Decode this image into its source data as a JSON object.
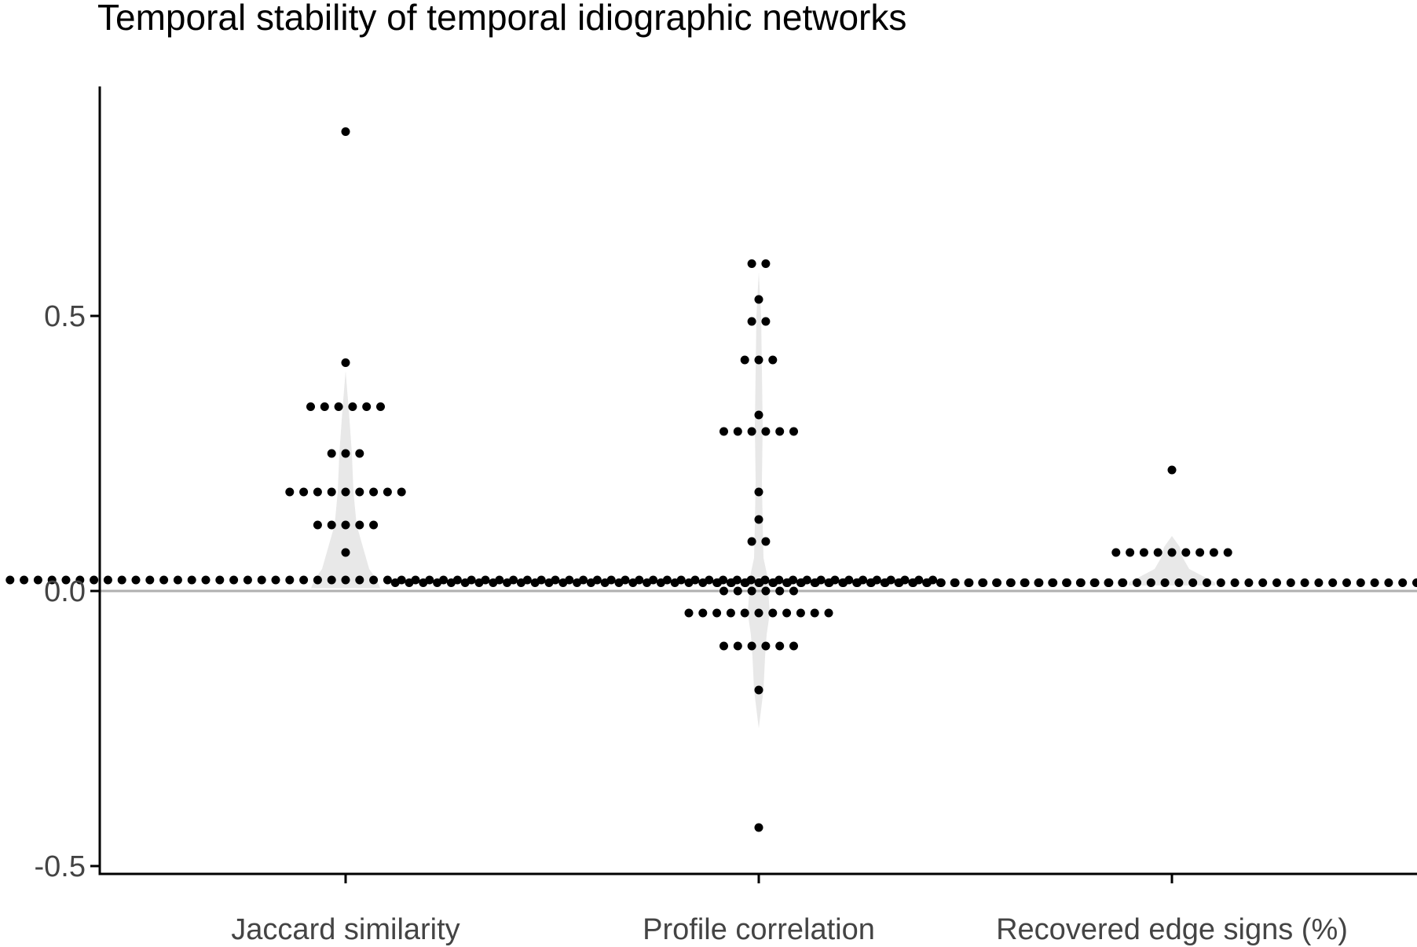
{
  "chart_data": {
    "type": "scatter",
    "title": "Temporal stability of temporal idiographic networks",
    "xlabel": "",
    "ylabel": "",
    "categories": [
      "Jaccard similarity",
      "Profile correlation",
      "Recovered edge signs (%)"
    ],
    "y_ticks": [
      "-0.5",
      "0.0",
      "0.5"
    ],
    "y_tick_values": [
      -0.5,
      0.0,
      0.5
    ],
    "ylim": [
      -0.51,
      0.92
    ],
    "reference_line": 0.0,
    "grid": false,
    "legend": "none",
    "series": [
      {
        "category": "Jaccard similarity",
        "groups": [
          {
            "value": 0.835,
            "count": 1
          },
          {
            "value": 0.415,
            "count": 1
          },
          {
            "value": 0.335,
            "count": 6
          },
          {
            "value": 0.25,
            "count": 3
          },
          {
            "value": 0.18,
            "count": 9
          },
          {
            "value": 0.12,
            "count": 5
          },
          {
            "value": 0.07,
            "count": 1
          },
          {
            "value": 0.02,
            "count": 85
          }
        ]
      },
      {
        "category": "Profile correlation",
        "groups": [
          {
            "value": 0.595,
            "count": 2
          },
          {
            "value": 0.53,
            "count": 1
          },
          {
            "value": 0.49,
            "count": 2
          },
          {
            "value": 0.42,
            "count": 3
          },
          {
            "value": 0.32,
            "count": 1
          },
          {
            "value": 0.29,
            "count": 6
          },
          {
            "value": 0.18,
            "count": 1
          },
          {
            "value": 0.13,
            "count": 1
          },
          {
            "value": 0.09,
            "count": 2
          },
          {
            "value": 0.015,
            "count": 53
          },
          {
            "value": 0.0,
            "count": 6
          },
          {
            "value": -0.04,
            "count": 11
          },
          {
            "value": -0.1,
            "count": 6
          },
          {
            "value": -0.18,
            "count": 1
          },
          {
            "value": -0.43,
            "count": 1
          }
        ]
      },
      {
        "category": "Recovered edge signs (%)",
        "groups": [
          {
            "value": 0.22,
            "count": 1
          },
          {
            "value": 0.07,
            "count": 9
          },
          {
            "value": 0.015,
            "count": 66
          }
        ]
      }
    ],
    "colors": {
      "dots": "#000000",
      "violin": "#e8e8e8",
      "reference_line": "#b0b0b0"
    }
  }
}
